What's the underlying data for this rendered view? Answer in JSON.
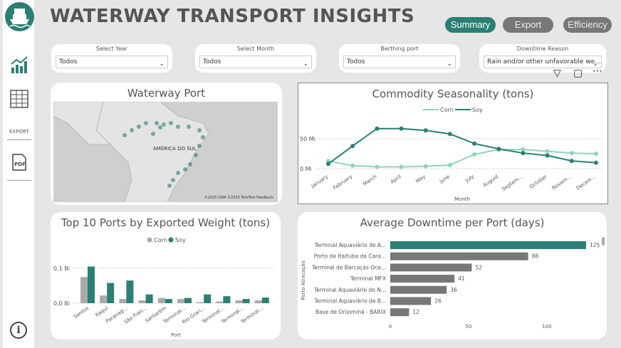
{
  "header": {
    "title": "WATERWAY TRANSPORT INSIGHTS"
  },
  "nav": {
    "summary": "Summary",
    "export": "Export",
    "efficiency": "Efficiency"
  },
  "sidebar": {
    "export_label": "EXPORT",
    "pdf_label": "PDF"
  },
  "filters": [
    {
      "title": "Select Year",
      "value": "Todos"
    },
    {
      "title": "Select Month",
      "value": "Todos"
    },
    {
      "title": "Berthing port",
      "value": "Todos"
    },
    {
      "title": "Downtime Reason",
      "value": "Rain and/or other unfavorable we..."
    }
  ],
  "map_panel": {
    "title": "Waterway Port",
    "map_label": "AMÉRICA DO SUL",
    "attribution": "©2025 OSM ©2025 TomTom Feedback"
  },
  "colors": {
    "accent": "#2b7f74",
    "corn": "#8fd4bd",
    "corn_bar": "#aaaaaa",
    "soy": "#2b7f74",
    "downtime_bar_highlight": "#2b7f74",
    "downtime_bar": "#777777"
  },
  "chart_data": [
    {
      "type": "line",
      "title": "Commodity Seasonality (tons)",
      "xlabel": "Month",
      "ylabel": "",
      "categories": [
        "January",
        "February",
        "March",
        "April",
        "May",
        "June",
        "July",
        "August",
        "Septem...",
        "October",
        "Novem...",
        "Decem..."
      ],
      "series": [
        {
          "name": "Corn",
          "values": [
            13,
            5,
            3,
            3,
            4,
            6,
            24,
            32,
            32,
            29,
            26,
            25
          ]
        },
        {
          "name": "Soy",
          "values": [
            8,
            38,
            67,
            67,
            64,
            58,
            42,
            33,
            26,
            22,
            13,
            10
          ]
        }
      ],
      "legend": [
        "Corn",
        "Soy"
      ],
      "yticks": [
        "50 Mi",
        "0 Mi"
      ],
      "ylim": [
        0,
        80
      ],
      "grid": true
    },
    {
      "type": "bar",
      "title": "Top 10 Ports by Exported Weight (tons)",
      "xlabel": "Port",
      "ylabel": "",
      "categories": [
        "Santos",
        "Itaqui",
        "Paranag...",
        "São Fran...",
        "Santarém",
        "Terminal...",
        "Rio Gran...",
        "Terminal...",
        "Terminal...",
        "Terminal..."
      ],
      "series": [
        {
          "name": "Corn",
          "values": [
            0.075,
            0.022,
            0.012,
            0.008,
            0.015,
            0.012,
            0.003,
            0.005,
            0.008,
            0.008
          ]
        },
        {
          "name": "Soy",
          "values": [
            0.105,
            0.058,
            0.065,
            0.025,
            0.012,
            0.015,
            0.025,
            0.02,
            0.012,
            0.016
          ]
        }
      ],
      "legend": [
        "Corn",
        "Soy"
      ],
      "yticks": [
        "0,1 Bi",
        "0,0 Bi"
      ],
      "ylim": [
        0,
        0.12
      ]
    },
    {
      "type": "bar",
      "orientation": "horizontal",
      "title": "Average Downtime per Port (days)",
      "ylabel": "Porto Atracação",
      "categories": [
        "Terminal Aquaviário de A...",
        "Porto de Itaituba da Cara...",
        "Terminal de Barcaças Oce...",
        "Terminal MFX",
        "Terminal Aquaviário do N...",
        "Terminal Aquaviário de B...",
        "Base de Oriximiná - BARIX"
      ],
      "values": [
        125,
        88,
        52,
        41,
        36,
        26,
        12
      ],
      "xticks": [
        "0",
        "50",
        "100"
      ],
      "xlim": [
        0,
        130
      ]
    }
  ]
}
